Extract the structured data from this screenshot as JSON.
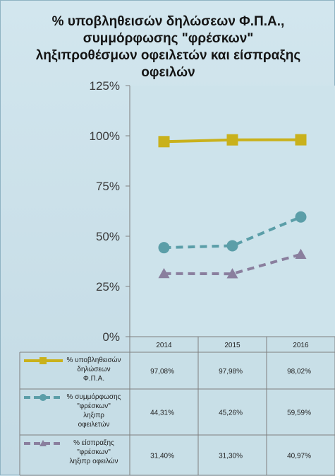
{
  "title": "% υποβληθεισών δηλώσεων Φ.Π.Α.,\nσυμμόρφωσης \"φρέσκων\"\nληξιπροθέσμων οφειλετών και είσπραξης\nοφειλών",
  "chart_data": {
    "type": "line",
    "categories": [
      "2014",
      "2015",
      "2016"
    ],
    "y_ticks": [
      "0%",
      "25%",
      "50%",
      "75%",
      "100%",
      "125%"
    ],
    "ylim": [
      0,
      125
    ],
    "grid": false,
    "legend": "data-table",
    "series": [
      {
        "name": "% υποβληθεισών δηλώσεων Φ.Π.Α.",
        "name_lines": [
          "% υποβληθεισών",
          "δηλώσεων",
          "Φ.Π.Α."
        ],
        "values": [
          97.08,
          97.98,
          98.02
        ],
        "labels": [
          "97,08%",
          "97,98%",
          "98,02%"
        ],
        "color": "#c9b11b",
        "dash": "solid",
        "marker": "square"
      },
      {
        "name": "% συμμόρφωσης \"φρέσκων\" ληξιπρ οφειλετών",
        "name_lines": [
          "% συμμόρφωσης",
          "\"φρέσκων\"",
          "ληξιπρ",
          "οφειλετών"
        ],
        "values": [
          44.31,
          45.26,
          59.59
        ],
        "labels": [
          "44,31%",
          "45,26%",
          "59,59%"
        ],
        "color": "#5b9ea8",
        "dash": "dashed",
        "marker": "circle"
      },
      {
        "name": "% είσπραξης \"φρέσκων\" ληξιπρ οφειλών",
        "name_lines": [
          "% είσπραξης",
          "\"φρέσκων\"",
          "ληξιπρ οφειλών"
        ],
        "values": [
          31.4,
          31.3,
          40.97
        ],
        "labels": [
          "31,40%",
          "31,30%",
          "40,97%"
        ],
        "color": "#8a7f9e",
        "dash": "dashed",
        "marker": "triangle"
      }
    ]
  }
}
